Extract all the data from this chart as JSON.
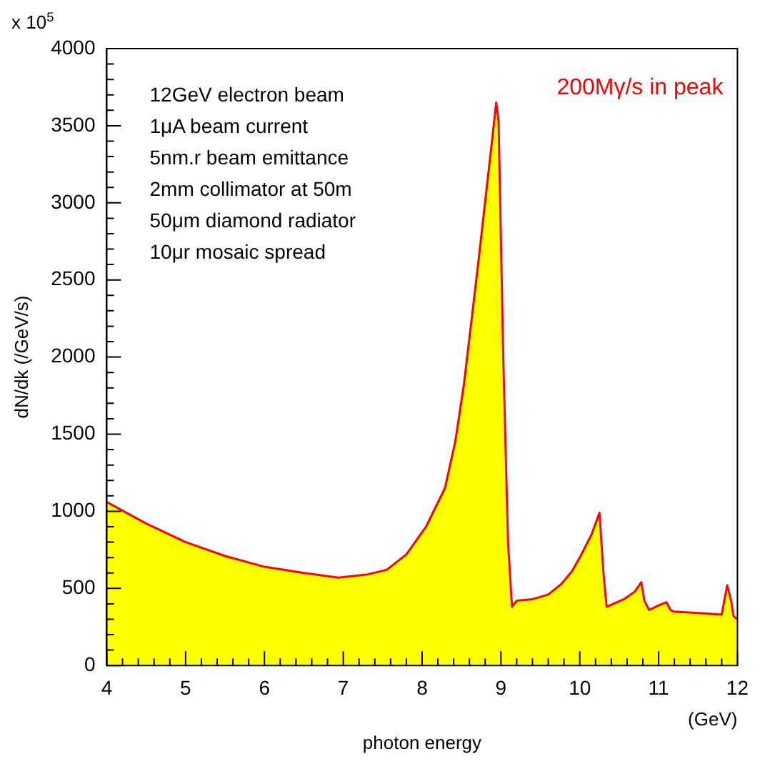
{
  "chart_data": {
    "type": "area",
    "xlabel": "photon energy",
    "ylabel": "dN/dk (/GeV/s)",
    "xlim": [
      4,
      12
    ],
    "xticks": [
      4,
      5,
      6,
      7,
      8,
      9,
      10,
      11,
      12
    ],
    "ylim": [
      0,
      4000
    ],
    "yticks": [
      0,
      500,
      1000,
      1500,
      2000,
      2500,
      3000,
      3500,
      4000
    ],
    "grid": false,
    "legend": false,
    "annotations": [
      "x 10$^{5}$",
      "(GeV)",
      "12GeV electron beam",
      "1μA beam current",
      "5nm.r beam emittance",
      "2mm collimator at 50m",
      "50μm diamond radiator",
      "10μr mosaic spread",
      "200Mγ/s in peak"
    ],
    "series": [
      {
        "color": "#ffff00",
        "x": [
          4,
          4.5,
          5,
          5.5,
          6,
          6.5,
          6.94,
          7.3,
          7.55,
          7.8,
          8.05,
          8.29,
          8.42,
          8.53,
          8.71,
          8.82,
          8.88,
          8.94,
          8.97,
          9.03,
          9.09,
          9.14,
          9.2,
          9.4,
          9.6,
          9.77,
          9.9,
          10.01,
          10.15,
          10.25,
          10.3,
          10.34,
          10.56,
          10.7,
          10.78,
          10.82,
          10.88,
          11,
          11.1,
          11.15,
          11.19,
          11.5,
          11.8,
          11.87,
          11.92,
          11.95,
          12
        ],
        "values": [
          1060,
          920,
          800,
          710,
          640,
          600,
          570,
          590,
          620,
          720,
          900,
          1150,
          1450,
          1820,
          2600,
          3100,
          3370,
          3650,
          3530,
          1980,
          800,
          380,
          420,
          430,
          460,
          530,
          610,
          710,
          850,
          990,
          600,
          380,
          430,
          480,
          540,
          420,
          360,
          390,
          410,
          360,
          350,
          340,
          330,
          520,
          420,
          320,
          300
        ]
      }
    ]
  }
}
